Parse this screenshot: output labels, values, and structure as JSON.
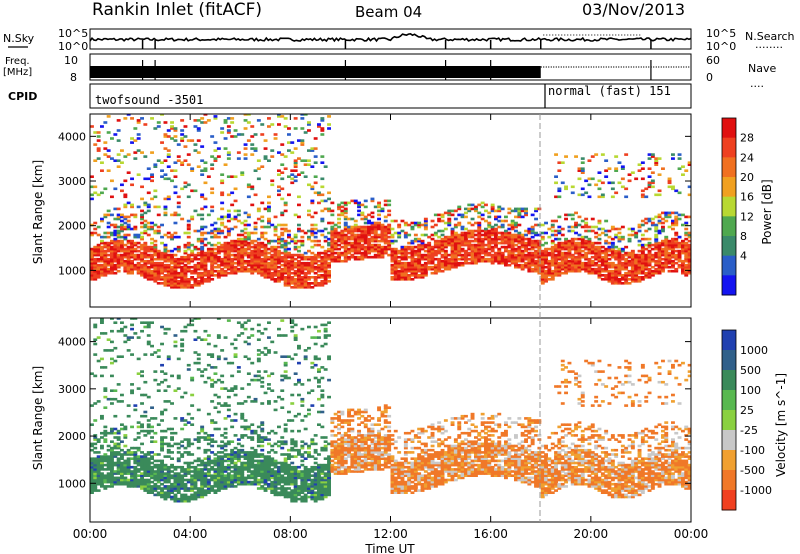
{
  "header": {
    "station": "Rankin Inlet (fitACF)",
    "beam": "Beam 04",
    "date": "03/Nov/2013"
  },
  "left_labels": {
    "nsky": "N.Sky",
    "freq": "Freq.",
    "mhz": "[MHz]",
    "cpid": "CPID"
  },
  "right_labels": {
    "nsearch": "N.Search",
    "nsearch_dots": "........",
    "nave": "Nave",
    "nave_dots": "...."
  },
  "noise_axis": {
    "top": "10^5",
    "bottom": "10^0"
  },
  "freq_axis": {
    "top": "10",
    "bottom": "8"
  },
  "nave_axis": {
    "top": "60",
    "bottom": "0"
  },
  "cpid": {
    "mode1": "twofsound -3501",
    "mode2": "normal (fast) 151",
    "switch_time": "18:00"
  },
  "chart_data": [
    {
      "type": "heatmap",
      "panel": "power",
      "ylabel": "Slant Range [km]",
      "y_ticks": [
        "1000",
        "2000",
        "3000",
        "4000"
      ],
      "ylim": [
        180,
        4500
      ],
      "colorbar": {
        "label": "Power [dB]",
        "ticks": [
          "4",
          "8",
          "12",
          "16",
          "20",
          "24",
          "28"
        ],
        "colors": [
          "#1414f0",
          "#2a5ec8",
          "#3a8a6a",
          "#4fa84f",
          "#b8d832",
          "#f0a020",
          "#f07020",
          "#ee4020",
          "#e01010"
        ]
      },
      "xlabel": "Time UT",
      "x_ticks": [
        "00:00",
        "04:00",
        "08:00",
        "12:00",
        "16:00",
        "20:00",
        "00:00"
      ]
    },
    {
      "type": "heatmap",
      "panel": "velocity",
      "ylabel": "Slant Range [km]",
      "y_ticks": [
        "1000",
        "2000",
        "3000",
        "4000"
      ],
      "ylim": [
        180,
        4500
      ],
      "colorbar": {
        "label": "Velocity [m s^-1]",
        "ticks": [
          "1000",
          "500",
          "100",
          "25",
          "-25",
          "-100",
          "-500",
          "-1000"
        ],
        "colors": [
          "#2040b0",
          "#30608a",
          "#3a8a5a",
          "#58b850",
          "#8ad040",
          "#c8c8c8",
          "#f0a030",
          "#f07828",
          "#f04020"
        ]
      },
      "xlabel": "Time UT",
      "x_ticks": [
        "00:00",
        "04:00",
        "08:00",
        "12:00",
        "16:00",
        "20:00",
        "00:00"
      ]
    }
  ]
}
